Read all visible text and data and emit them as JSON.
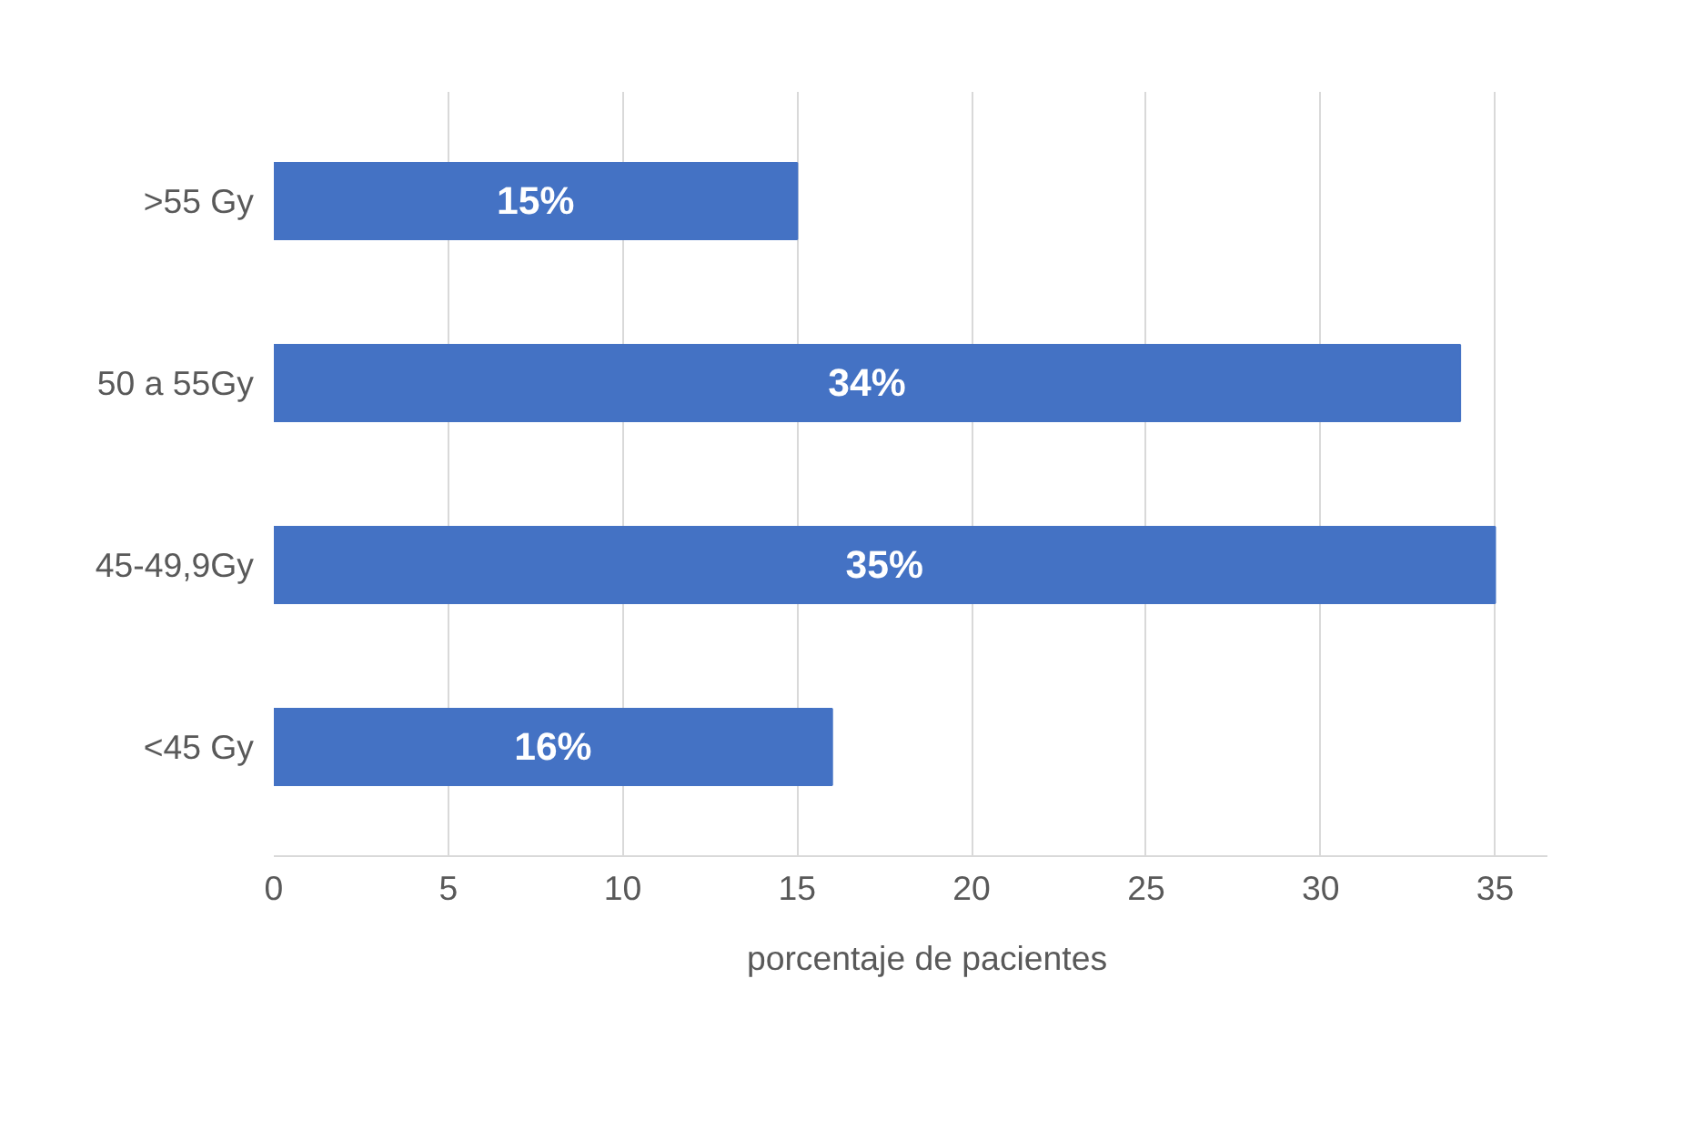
{
  "chart_data": {
    "type": "bar",
    "orientation": "horizontal",
    "categories": [
      ">55 Gy",
      "50 a 55Gy",
      "45-49,9Gy",
      "<45 Gy"
    ],
    "series": [
      {
        "name": "porcentaje de pacientes",
        "color": "#4472c4",
        "values": [
          15,
          34,
          35,
          16
        ],
        "value_labels": [
          "15%",
          "34%",
          "35%",
          "16%"
        ]
      }
    ],
    "xlim": [
      0,
      36.5
    ],
    "xticks": [
      0,
      5,
      10,
      15,
      20,
      25,
      30,
      35
    ],
    "grid": "x",
    "legend": "bottom"
  }
}
